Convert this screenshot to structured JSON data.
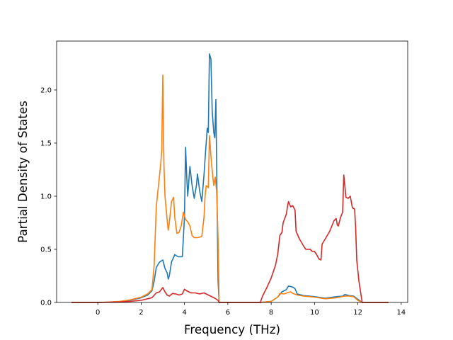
{
  "chart_data": {
    "type": "line",
    "title": "",
    "xlabel": "Frequency (THz)",
    "ylabel": "Partial Density of States",
    "xlim": [
      -1.9,
      14.3
    ],
    "ylim": [
      0,
      2.46
    ],
    "xticks": [
      0,
      2,
      4,
      6,
      8,
      10,
      12,
      14
    ],
    "yticks": [
      0.0,
      0.5,
      1.0,
      1.5,
      2.0
    ],
    "xtick_labels": [
      "0",
      "2",
      "4",
      "6",
      "8",
      "10",
      "12",
      "14"
    ],
    "ytick_labels": [
      "0.0",
      "0.5",
      "1.0",
      "1.5",
      "2.0"
    ],
    "grid": false,
    "legend": "none",
    "series": [
      {
        "color": "#1f77b4",
        "points": [
          [
            -1.2,
            0
          ],
          [
            0,
            0
          ],
          [
            0.5,
            0.003
          ],
          [
            1,
            0.008
          ],
          [
            1.5,
            0.02
          ],
          [
            2,
            0.045
          ],
          [
            2.3,
            0.07
          ],
          [
            2.5,
            0.11
          ],
          [
            2.6,
            0.2
          ],
          [
            2.7,
            0.33
          ],
          [
            2.85,
            0.38
          ],
          [
            3.0,
            0.4
          ],
          [
            3.1,
            0.32
          ],
          [
            3.2,
            0.28
          ],
          [
            3.25,
            0.22
          ],
          [
            3.3,
            0.25
          ],
          [
            3.4,
            0.38
          ],
          [
            3.55,
            0.45
          ],
          [
            3.7,
            0.43
          ],
          [
            3.9,
            0.43
          ],
          [
            4.0,
            0.8
          ],
          [
            4.05,
            1.46
          ],
          [
            4.1,
            1.2
          ],
          [
            4.15,
            1.0
          ],
          [
            4.25,
            1.28
          ],
          [
            4.35,
            1.1
          ],
          [
            4.45,
            0.98
          ],
          [
            4.55,
            1.1
          ],
          [
            4.6,
            1.21
          ],
          [
            4.7,
            1.05
          ],
          [
            4.8,
            0.95
          ],
          [
            4.9,
            1.2
          ],
          [
            4.95,
            1.35
          ],
          [
            5.0,
            1.5
          ],
          [
            5.05,
            1.64
          ],
          [
            5.1,
            1.6
          ],
          [
            5.15,
            2.34
          ],
          [
            5.22,
            2.29
          ],
          [
            5.28,
            1.8
          ],
          [
            5.35,
            1.6
          ],
          [
            5.4,
            1.55
          ],
          [
            5.45,
            1.91
          ],
          [
            5.5,
            1.0
          ],
          [
            5.55,
            0.2
          ],
          [
            5.6,
            0
          ],
          [
            7.5,
            0
          ],
          [
            8.0,
            0.01
          ],
          [
            8.3,
            0.05
          ],
          [
            8.5,
            0.1
          ],
          [
            8.7,
            0.12
          ],
          [
            8.8,
            0.155
          ],
          [
            8.9,
            0.15
          ],
          [
            9.0,
            0.145
          ],
          [
            9.1,
            0.13
          ],
          [
            9.2,
            0.08
          ],
          [
            9.5,
            0.065
          ],
          [
            10,
            0.055
          ],
          [
            10.5,
            0.04
          ],
          [
            11,
            0.055
          ],
          [
            11.3,
            0.06
          ],
          [
            11.4,
            0.075
          ],
          [
            11.6,
            0.065
          ],
          [
            11.8,
            0.06
          ],
          [
            12.0,
            0.03
          ],
          [
            12.2,
            0
          ],
          [
            13.4,
            0
          ]
        ]
      },
      {
        "color": "#ff7f0e",
        "points": [
          [
            -1.2,
            0
          ],
          [
            0,
            0
          ],
          [
            0.5,
            0.004
          ],
          [
            1,
            0.01
          ],
          [
            1.5,
            0.025
          ],
          [
            2,
            0.05
          ],
          [
            2.3,
            0.08
          ],
          [
            2.5,
            0.12
          ],
          [
            2.6,
            0.35
          ],
          [
            2.7,
            0.9
          ],
          [
            2.8,
            1.1
          ],
          [
            2.9,
            1.3
          ],
          [
            2.95,
            1.43
          ],
          [
            3.0,
            2.14
          ],
          [
            3.05,
            1.3
          ],
          [
            3.1,
            1.0
          ],
          [
            3.2,
            0.78
          ],
          [
            3.25,
            0.68
          ],
          [
            3.3,
            0.75
          ],
          [
            3.4,
            0.95
          ],
          [
            3.5,
            0.99
          ],
          [
            3.55,
            0.8
          ],
          [
            3.65,
            0.65
          ],
          [
            3.75,
            0.66
          ],
          [
            3.85,
            0.72
          ],
          [
            3.95,
            0.85
          ],
          [
            4.05,
            0.78
          ],
          [
            4.15,
            0.76
          ],
          [
            4.25,
            0.72
          ],
          [
            4.35,
            0.63
          ],
          [
            4.45,
            0.61
          ],
          [
            4.6,
            0.61
          ],
          [
            4.8,
            0.62
          ],
          [
            4.9,
            0.8
          ],
          [
            4.95,
            1.0
          ],
          [
            5.0,
            1.1
          ],
          [
            5.1,
            1.08
          ],
          [
            5.15,
            1.57
          ],
          [
            5.25,
            1.3
          ],
          [
            5.35,
            1.1
          ],
          [
            5.42,
            1.18
          ],
          [
            5.48,
            1.05
          ],
          [
            5.55,
            0.6
          ],
          [
            5.6,
            0
          ],
          [
            7.5,
            0
          ],
          [
            8.0,
            0.01
          ],
          [
            8.3,
            0.05
          ],
          [
            8.4,
            0.085
          ],
          [
            8.6,
            0.08
          ],
          [
            8.8,
            0.095
          ],
          [
            8.9,
            0.1
          ],
          [
            9.0,
            0.085
          ],
          [
            9.2,
            0.07
          ],
          [
            9.5,
            0.06
          ],
          [
            10,
            0.05
          ],
          [
            10.5,
            0.035
          ],
          [
            11,
            0.045
          ],
          [
            11.4,
            0.06
          ],
          [
            11.6,
            0.06
          ],
          [
            11.8,
            0.055
          ],
          [
            12.0,
            0.02
          ],
          [
            12.2,
            0
          ],
          [
            13.4,
            0
          ]
        ]
      },
      {
        "color": "#d62728",
        "points": [
          [
            -1.2,
            0
          ],
          [
            0,
            0
          ],
          [
            0.5,
            0.002
          ],
          [
            1,
            0.005
          ],
          [
            1.5,
            0.01
          ],
          [
            2,
            0.02
          ],
          [
            2.5,
            0.045
          ],
          [
            2.7,
            0.09
          ],
          [
            2.85,
            0.1
          ],
          [
            3.0,
            0.14
          ],
          [
            3.1,
            0.1
          ],
          [
            3.2,
            0.07
          ],
          [
            3.3,
            0.06
          ],
          [
            3.45,
            0.085
          ],
          [
            3.6,
            0.08
          ],
          [
            3.75,
            0.07
          ],
          [
            3.9,
            0.08
          ],
          [
            4.0,
            0.125
          ],
          [
            4.1,
            0.11
          ],
          [
            4.3,
            0.09
          ],
          [
            4.5,
            0.09
          ],
          [
            4.7,
            0.08
          ],
          [
            4.9,
            0.09
          ],
          [
            5.0,
            0.08
          ],
          [
            5.2,
            0.06
          ],
          [
            5.4,
            0.04
          ],
          [
            5.55,
            0.02
          ],
          [
            5.6,
            0
          ],
          [
            7.5,
            0
          ],
          [
            7.6,
            0.06
          ],
          [
            7.8,
            0.14
          ],
          [
            8.0,
            0.23
          ],
          [
            8.2,
            0.35
          ],
          [
            8.3,
            0.45
          ],
          [
            8.4,
            0.63
          ],
          [
            8.5,
            0.66
          ],
          [
            8.55,
            0.75
          ],
          [
            8.7,
            0.83
          ],
          [
            8.75,
            0.9
          ],
          [
            8.8,
            0.95
          ],
          [
            8.9,
            0.9
          ],
          [
            9.0,
            0.91
          ],
          [
            9.1,
            0.87
          ],
          [
            9.15,
            0.67
          ],
          [
            9.3,
            0.6
          ],
          [
            9.5,
            0.53
          ],
          [
            9.6,
            0.5
          ],
          [
            9.8,
            0.5
          ],
          [
            9.9,
            0.48
          ],
          [
            10.0,
            0.48
          ],
          [
            10.1,
            0.45
          ],
          [
            10.2,
            0.41
          ],
          [
            10.3,
            0.4
          ],
          [
            10.35,
            0.55
          ],
          [
            10.5,
            0.6
          ],
          [
            10.7,
            0.67
          ],
          [
            10.9,
            0.77
          ],
          [
            11.0,
            0.79
          ],
          [
            11.05,
            0.73
          ],
          [
            11.1,
            0.72
          ],
          [
            11.2,
            0.8
          ],
          [
            11.3,
            0.85
          ],
          [
            11.35,
            1.2
          ],
          [
            11.4,
            1.1
          ],
          [
            11.45,
            0.99
          ],
          [
            11.55,
            0.98
          ],
          [
            11.65,
            1.0
          ],
          [
            11.75,
            0.89
          ],
          [
            11.85,
            0.88
          ],
          [
            11.9,
            0.7
          ],
          [
            11.95,
            0.4
          ],
          [
            12.05,
            0.2
          ],
          [
            12.2,
            0
          ],
          [
            13.4,
            0
          ]
        ]
      }
    ]
  }
}
